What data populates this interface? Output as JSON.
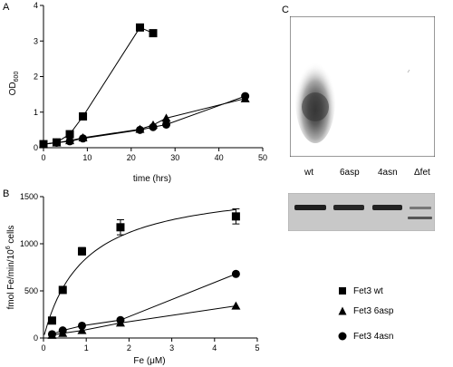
{
  "panels": {
    "a": "A",
    "b": "B",
    "c": "C"
  },
  "chart_data": [
    {
      "type": "line",
      "panel": "A",
      "xlabel": "time (hrs)",
      "ylabel": "OD",
      "ylabel_sub": "600",
      "xlim": [
        0,
        50
      ],
      "ylim": [
        0,
        4
      ],
      "xticks": [
        "0",
        "10",
        "20",
        "30",
        "40",
        "50"
      ],
      "yticks": [
        "0",
        "1",
        "2",
        "3",
        "4"
      ],
      "grid": false,
      "series": [
        {
          "marker": "square",
          "points": [
            [
              0,
              0.1
            ],
            [
              3,
              0.15
            ],
            [
              6,
              0.38
            ],
            [
              9,
              0.88
            ],
            [
              22,
              3.38
            ],
            [
              25,
              3.22
            ]
          ]
        },
        {
          "marker": "triangle",
          "points": [
            [
              0,
              0.1
            ],
            [
              3,
              0.14
            ],
            [
              6,
              0.2
            ],
            [
              9,
              0.28
            ],
            [
              22,
              0.52
            ],
            [
              25,
              0.64
            ],
            [
              28,
              0.83
            ],
            [
              46,
              1.38
            ]
          ]
        },
        {
          "marker": "circle",
          "points": [
            [
              0,
              0.1
            ],
            [
              3,
              0.14
            ],
            [
              6,
              0.18
            ],
            [
              9,
              0.26
            ],
            [
              22,
              0.5
            ],
            [
              25,
              0.58
            ],
            [
              28,
              0.65
            ],
            [
              46,
              1.45
            ]
          ]
        }
      ]
    },
    {
      "type": "scatter",
      "panel": "B",
      "xlabel": "Fe (μM)",
      "ylabel": "fmol Fe/min/10",
      "ylabel_sup": "6",
      "ylabel_suffix": " cells",
      "xlim": [
        0,
        5
      ],
      "ylim": [
        0,
        1500
      ],
      "xticks": [
        "0",
        "1",
        "2",
        "3",
        "4",
        "5"
      ],
      "yticks": [
        "0",
        "500",
        "1000",
        "1500"
      ],
      "grid": false,
      "series": [
        {
          "marker": "square",
          "points": [
            [
              0.2,
              185
            ],
            [
              0.45,
              510
            ],
            [
              0.9,
              920
            ],
            [
              1.8,
              1175
            ],
            [
              4.5,
              1290
            ]
          ],
          "errors": [
            0,
            0,
            40,
            80,
            80
          ],
          "fit": "hyperbolic"
        },
        {
          "marker": "triangle",
          "points": [
            [
              0.2,
              30
            ],
            [
              0.45,
              50
            ],
            [
              0.9,
              80
            ],
            [
              1.8,
              160
            ],
            [
              4.5,
              340
            ]
          ]
        },
        {
          "marker": "circle",
          "points": [
            [
              0.2,
              40
            ],
            [
              0.45,
              80
            ],
            [
              0.9,
              130
            ],
            [
              1.8,
              190
            ],
            [
              4.5,
              680
            ]
          ]
        }
      ]
    }
  ],
  "legend": [
    {
      "marker": "square",
      "label": "Fet3 wt"
    },
    {
      "marker": "triangle",
      "label": "Fet3 6asp"
    },
    {
      "marker": "circle",
      "label": "Fet3 4asn"
    }
  ],
  "gel": {
    "lanes": [
      "wt",
      "6asp",
      "4asn",
      "Δfet"
    ]
  }
}
